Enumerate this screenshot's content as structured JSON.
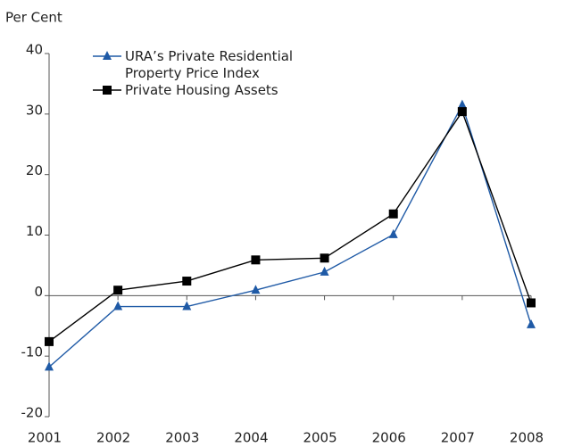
{
  "chart_data": {
    "type": "line",
    "y_label": "Per Cent",
    "categories": [
      "2001",
      "2002",
      "2003",
      "2004",
      "2005",
      "2006",
      "2007",
      "2008"
    ],
    "series": [
      {
        "name": "URA’s Private Residential Property Price Index",
        "color": "#1f5aa6",
        "marker": "triangle",
        "values": [
          -11.8,
          -1.8,
          -1.8,
          0.9,
          3.9,
          10.1,
          31.5,
          -4.8
        ]
      },
      {
        "name": "Private Housing Assets",
        "color": "#000000",
        "marker": "square",
        "values": [
          -7.6,
          0.9,
          2.4,
          5.9,
          6.2,
          13.5,
          30.4,
          -1.2
        ]
      }
    ],
    "ylim": [
      -20,
      40
    ],
    "yticks": [
      -20,
      -10,
      0,
      10,
      20,
      30,
      40
    ],
    "grid": false,
    "legend": "upper left"
  }
}
